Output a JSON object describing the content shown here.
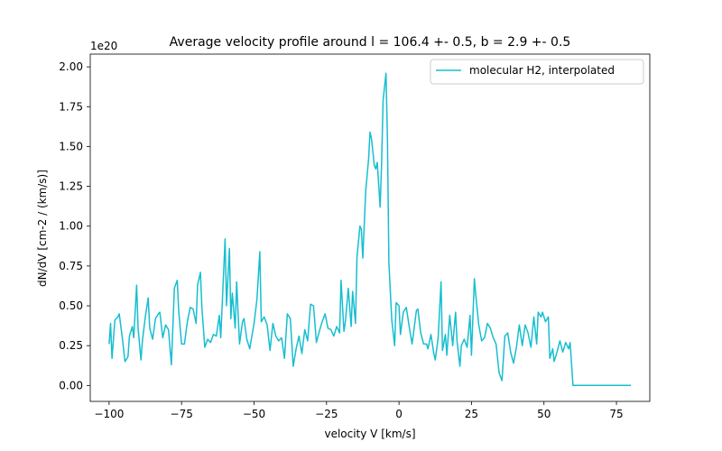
{
  "chart_data": {
    "type": "line",
    "title": "Average velocity profile around l = 106.4 +- 0.5, b = 2.9 +- 0.5",
    "xlabel": "velocity V [km/s]",
    "ylabel": "dN/dV  [cm-2 / (km/s)]",
    "y_offset_label": "1e20",
    "xlim": [
      -106.5,
      86.5
    ],
    "ylim": [
      -0.1,
      2.08
    ],
    "xticks": [
      -100,
      -75,
      -50,
      -25,
      0,
      25,
      50,
      75
    ],
    "xtick_labels": [
      "−100",
      "−75",
      "−50",
      "−25",
      "0",
      "25",
      "50",
      "75"
    ],
    "yticks": [
      0.0,
      0.25,
      0.5,
      0.75,
      1.0,
      1.25,
      1.5,
      1.75,
      2.0
    ],
    "ytick_labels": [
      "0.00",
      "0.25",
      "0.50",
      "0.75",
      "1.00",
      "1.25",
      "1.50",
      "1.75",
      "2.00"
    ],
    "legend_position": "top-right",
    "grid": false,
    "series": [
      {
        "name": "molecular H2, interpolated",
        "color": "#17becf",
        "points": [
          [
            -100,
            0.26
          ],
          [
            -99.5,
            0.39
          ],
          [
            -99,
            0.17
          ],
          [
            -98,
            0.41
          ],
          [
            -97,
            0.43
          ],
          [
            -96.5,
            0.45
          ],
          [
            -95.5,
            0.31
          ],
          [
            -94.5,
            0.15
          ],
          [
            -93.5,
            0.18
          ],
          [
            -93,
            0.31
          ],
          [
            -92,
            0.37
          ],
          [
            -91.5,
            0.3
          ],
          [
            -90.5,
            0.63
          ],
          [
            -90,
            0.36
          ],
          [
            -89,
            0.16
          ],
          [
            -88.5,
            0.28
          ],
          [
            -87.5,
            0.43
          ],
          [
            -86.5,
            0.55
          ],
          [
            -86,
            0.36
          ],
          [
            -85,
            0.29
          ],
          [
            -84,
            0.42
          ],
          [
            -83,
            0.45
          ],
          [
            -82.5,
            0.46
          ],
          [
            -81.5,
            0.3
          ],
          [
            -80.5,
            0.38
          ],
          [
            -79.5,
            0.35
          ],
          [
            -78.5,
            0.13
          ],
          [
            -77.5,
            0.61
          ],
          [
            -76.5,
            0.66
          ],
          [
            -76,
            0.47
          ],
          [
            -75,
            0.26
          ],
          [
            -74,
            0.26
          ],
          [
            -73,
            0.4
          ],
          [
            -72,
            0.49
          ],
          [
            -71,
            0.48
          ],
          [
            -70,
            0.39
          ],
          [
            -69.5,
            0.63
          ],
          [
            -68.5,
            0.71
          ],
          [
            -68,
            0.49
          ],
          [
            -67,
            0.24
          ],
          [
            -66,
            0.29
          ],
          [
            -65,
            0.27
          ],
          [
            -64,
            0.32
          ],
          [
            -63,
            0.31
          ],
          [
            -62,
            0.44
          ],
          [
            -61.5,
            0.3
          ],
          [
            -60,
            0.92
          ],
          [
            -59.5,
            0.5
          ],
          [
            -58.5,
            0.86
          ],
          [
            -58,
            0.42
          ],
          [
            -57.5,
            0.58
          ],
          [
            -56.5,
            0.36
          ],
          [
            -56,
            0.65
          ],
          [
            -55,
            0.26
          ],
          [
            -54,
            0.4
          ],
          [
            -53.5,
            0.42
          ],
          [
            -52.5,
            0.29
          ],
          [
            -51.5,
            0.23
          ],
          [
            -50,
            0.39
          ],
          [
            -49,
            0.54
          ],
          [
            -48,
            0.84
          ],
          [
            -47.5,
            0.4
          ],
          [
            -46.5,
            0.43
          ],
          [
            -45.5,
            0.38
          ],
          [
            -44.5,
            0.22
          ],
          [
            -43.5,
            0.39
          ],
          [
            -42.5,
            0.31
          ],
          [
            -41.5,
            0.28
          ],
          [
            -40.5,
            0.3
          ],
          [
            -39.5,
            0.17
          ],
          [
            -38.5,
            0.45
          ],
          [
            -37.5,
            0.42
          ],
          [
            -36.5,
            0.12
          ],
          [
            -35.5,
            0.23
          ],
          [
            -34.5,
            0.31
          ],
          [
            -33.5,
            0.2
          ],
          [
            -32.5,
            0.35
          ],
          [
            -31.5,
            0.28
          ],
          [
            -30.5,
            0.51
          ],
          [
            -29.5,
            0.5
          ],
          [
            -28.5,
            0.27
          ],
          [
            -27.5,
            0.34
          ],
          [
            -26.5,
            0.4
          ],
          [
            -25.5,
            0.45
          ],
          [
            -24.5,
            0.36
          ],
          [
            -23.5,
            0.35
          ],
          [
            -22.5,
            0.31
          ],
          [
            -21.5,
            0.37
          ],
          [
            -20.5,
            0.33
          ],
          [
            -20,
            0.66
          ],
          [
            -19,
            0.34
          ],
          [
            -18.5,
            0.4
          ],
          [
            -17.5,
            0.61
          ],
          [
            -16.5,
            0.37
          ],
          [
            -16,
            0.59
          ],
          [
            -15,
            0.39
          ],
          [
            -14.5,
            0.8
          ],
          [
            -13.5,
            1.0
          ],
          [
            -13,
            0.98
          ],
          [
            -12.5,
            0.8
          ],
          [
            -11.5,
            1.22
          ],
          [
            -10.5,
            1.42
          ],
          [
            -10,
            1.59
          ],
          [
            -9.5,
            1.55
          ],
          [
            -8.5,
            1.38
          ],
          [
            -8,
            1.36
          ],
          [
            -7.5,
            1.4
          ],
          [
            -6.5,
            1.12
          ],
          [
            -6,
            1.39
          ],
          [
            -5.5,
            1.79
          ],
          [
            -4.5,
            1.96
          ],
          [
            -4,
            1.55
          ],
          [
            -3.5,
            0.77
          ],
          [
            -2.5,
            0.41
          ],
          [
            -1.5,
            0.25
          ],
          [
            -1,
            0.52
          ],
          [
            0,
            0.5
          ],
          [
            0.5,
            0.32
          ],
          [
            1.5,
            0.46
          ],
          [
            2.5,
            0.49
          ],
          [
            3.5,
            0.37
          ],
          [
            4.5,
            0.26
          ],
          [
            5,
            0.33
          ],
          [
            6,
            0.47
          ],
          [
            6.5,
            0.48
          ],
          [
            7.5,
            0.33
          ],
          [
            8.5,
            0.26
          ],
          [
            9.5,
            0.26
          ],
          [
            10,
            0.23
          ],
          [
            11,
            0.32
          ],
          [
            12,
            0.2
          ],
          [
            12.5,
            0.16
          ],
          [
            13.5,
            0.3
          ],
          [
            14.5,
            0.65
          ],
          [
            15,
            0.22
          ],
          [
            16,
            0.32
          ],
          [
            16.5,
            0.19
          ],
          [
            17.5,
            0.44
          ],
          [
            18.5,
            0.25
          ],
          [
            19.5,
            0.46
          ],
          [
            20,
            0.28
          ],
          [
            21,
            0.12
          ],
          [
            21.5,
            0.25
          ],
          [
            22.5,
            0.29
          ],
          [
            23.5,
            0.24
          ],
          [
            24.5,
            0.44
          ],
          [
            25,
            0.19
          ],
          [
            26,
            0.67
          ],
          [
            26.5,
            0.56
          ],
          [
            27.5,
            0.38
          ],
          [
            28.5,
            0.28
          ],
          [
            29.5,
            0.3
          ],
          [
            30.5,
            0.39
          ],
          [
            31.5,
            0.36
          ],
          [
            32.5,
            0.3
          ],
          [
            33.5,
            0.26
          ],
          [
            34.5,
            0.08
          ],
          [
            35.5,
            0.03
          ],
          [
            36.5,
            0.31
          ],
          [
            37.5,
            0.33
          ],
          [
            38.5,
            0.21
          ],
          [
            39.5,
            0.14
          ],
          [
            40.5,
            0.24
          ],
          [
            41.5,
            0.38
          ],
          [
            42.5,
            0.25
          ],
          [
            43.5,
            0.38
          ],
          [
            44.5,
            0.33
          ],
          [
            45.5,
            0.24
          ],
          [
            46.5,
            0.43
          ],
          [
            47.5,
            0.26
          ],
          [
            48,
            0.46
          ],
          [
            49,
            0.43
          ],
          [
            49.5,
            0.46
          ],
          [
            50.5,
            0.4
          ],
          [
            51.5,
            0.43
          ],
          [
            52,
            0.17
          ],
          [
            53,
            0.23
          ],
          [
            53.5,
            0.15
          ],
          [
            54.5,
            0.21
          ],
          [
            55.5,
            0.28
          ],
          [
            56.5,
            0.21
          ],
          [
            57.5,
            0.27
          ],
          [
            58.5,
            0.23
          ],
          [
            59,
            0.27
          ],
          [
            60,
            0.0
          ],
          [
            80,
            0.0
          ]
        ]
      }
    ]
  }
}
